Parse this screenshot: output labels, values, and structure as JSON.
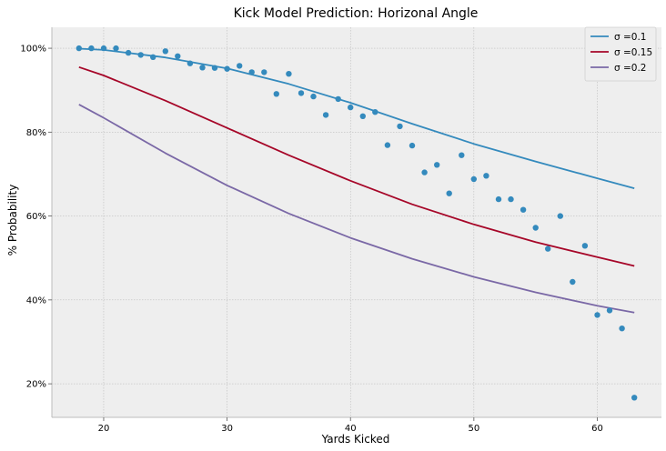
{
  "chart_data": {
    "type": "line",
    "title": "Kick Model Prediction: Horizonal Angle",
    "xlabel": "Yards Kicked",
    "ylabel": "% Probability",
    "xlim": [
      15.8,
      65.2
    ],
    "ylim": [
      12,
      105
    ],
    "x_ticks": [
      20,
      30,
      40,
      50,
      60
    ],
    "y_ticks": [
      20,
      40,
      60,
      80,
      100
    ],
    "y_tick_labels": [
      "20%",
      "40%",
      "60%",
      "80%",
      "100%"
    ],
    "grid": true,
    "legend_position": "top-right",
    "series": [
      {
        "name": "σ =0.1",
        "color": "#348ABD",
        "x": [
          18,
          20,
          25,
          30,
          35,
          40,
          45,
          50,
          55,
          60,
          63
        ],
        "y": [
          99.9,
          99.6,
          97.8,
          95.2,
          91.5,
          87.0,
          82.0,
          77.2,
          73.0,
          69.0,
          66.6
        ]
      },
      {
        "name": "σ =0.15",
        "color": "#A60628",
        "x": [
          18,
          20,
          25,
          30,
          35,
          40,
          45,
          50,
          55,
          60,
          63
        ],
        "y": [
          95.5,
          93.5,
          87.5,
          81.0,
          74.5,
          68.4,
          62.8,
          58.0,
          53.8,
          50.2,
          48.1
        ]
      },
      {
        "name": "σ =0.2",
        "color": "#7A68A6",
        "x": [
          18,
          20,
          25,
          30,
          35,
          40,
          45,
          50,
          55,
          60,
          63
        ],
        "y": [
          86.6,
          83.4,
          75.0,
          67.3,
          60.6,
          54.8,
          49.8,
          45.5,
          41.8,
          38.6,
          37.0
        ]
      }
    ],
    "observed": {
      "color": "#348ABD",
      "x": [
        18,
        19,
        20,
        21,
        22,
        23,
        24,
        25,
        26,
        27,
        28,
        29,
        30,
        31,
        32,
        33,
        34,
        35,
        36,
        37,
        38,
        39,
        40,
        41,
        42,
        43,
        44,
        45,
        46,
        47,
        48,
        49,
        50,
        51,
        52,
        53,
        54,
        55,
        56,
        57,
        58,
        59,
        60,
        61,
        62,
        63
      ],
      "y": [
        100,
        100,
        100,
        100,
        98.9,
        98.4,
        97.9,
        99.3,
        98.1,
        96.4,
        95.4,
        95.3,
        95.1,
        95.8,
        94.3,
        94.3,
        89.1,
        93.9,
        89.3,
        88.5,
        84.1,
        87.9,
        85.9,
        83.8,
        84.8,
        76.9,
        81.4,
        76.8,
        70.4,
        72.2,
        65.4,
        74.5,
        68.8,
        69.6,
        64.0,
        64.0,
        61.5,
        57.2,
        52.2,
        60.0,
        44.3,
        52.9,
        36.4,
        37.5,
        33.2,
        16.7
      ]
    }
  }
}
